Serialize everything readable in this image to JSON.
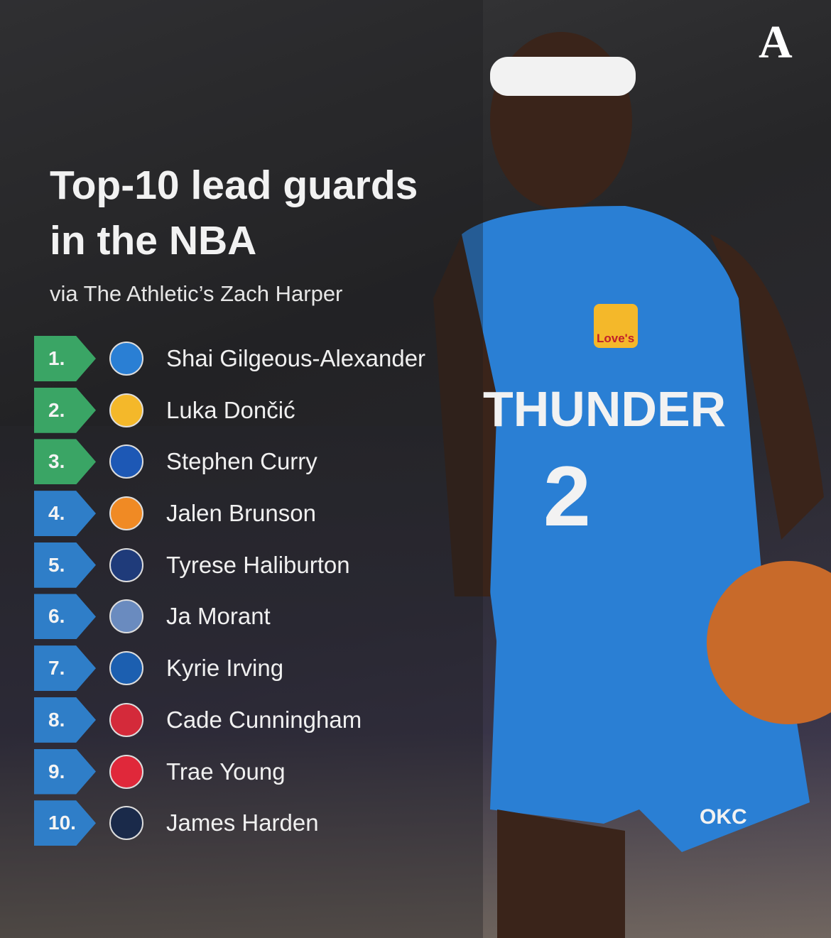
{
  "brand_mark": "A",
  "title_lines": [
    "Top-10 lead guards",
    "in the NBA"
  ],
  "subtitle": "via The Athletic’s Zach Harper",
  "colors": {
    "top3": "#3aa565",
    "rest": "#2f7ec8",
    "jersey": "#2a7fd4"
  },
  "photo": {
    "jersey_text": "THUNDER",
    "jersey_number": "2",
    "shorts_logo": "OKC",
    "sponsor": "Love's"
  },
  "rankings": [
    {
      "rank": "1.",
      "player": "Shai Gilgeous-Alexander",
      "team_icon": "thunder-logo-icon",
      "team_color": "#2a7fd4",
      "tier": "top3"
    },
    {
      "rank": "2.",
      "player": "Luka Dončić",
      "team_icon": "lakers-logo-icon",
      "team_color": "#f4b82a",
      "tier": "top3"
    },
    {
      "rank": "3.",
      "player": "Stephen Curry",
      "team_icon": "warriors-logo-icon",
      "team_color": "#1d58b5",
      "tier": "top3"
    },
    {
      "rank": "4.",
      "player": "Jalen Brunson",
      "team_icon": "knicks-logo-icon",
      "team_color": "#f08a24",
      "tier": "rest"
    },
    {
      "rank": "5.",
      "player": "Tyrese Haliburton",
      "team_icon": "pacers-logo-icon",
      "team_color": "#1f3b7a",
      "tier": "rest"
    },
    {
      "rank": "6.",
      "player": "Ja Morant",
      "team_icon": "grizzlies-logo-icon",
      "team_color": "#6a8bbf",
      "tier": "rest"
    },
    {
      "rank": "7.",
      "player": "Kyrie Irving",
      "team_icon": "mavericks-logo-icon",
      "team_color": "#1c5fb0",
      "tier": "rest"
    },
    {
      "rank": "8.",
      "player": "Cade Cunningham",
      "team_icon": "pistons-logo-icon",
      "team_color": "#d42a3a",
      "tier": "rest"
    },
    {
      "rank": "9.",
      "player": "Trae Young",
      "team_icon": "hawks-logo-icon",
      "team_color": "#e0283a",
      "tier": "rest"
    },
    {
      "rank": "10.",
      "player": "James Harden",
      "team_icon": "clippers-logo-icon",
      "team_color": "#1a2a4a",
      "tier": "rest"
    }
  ]
}
